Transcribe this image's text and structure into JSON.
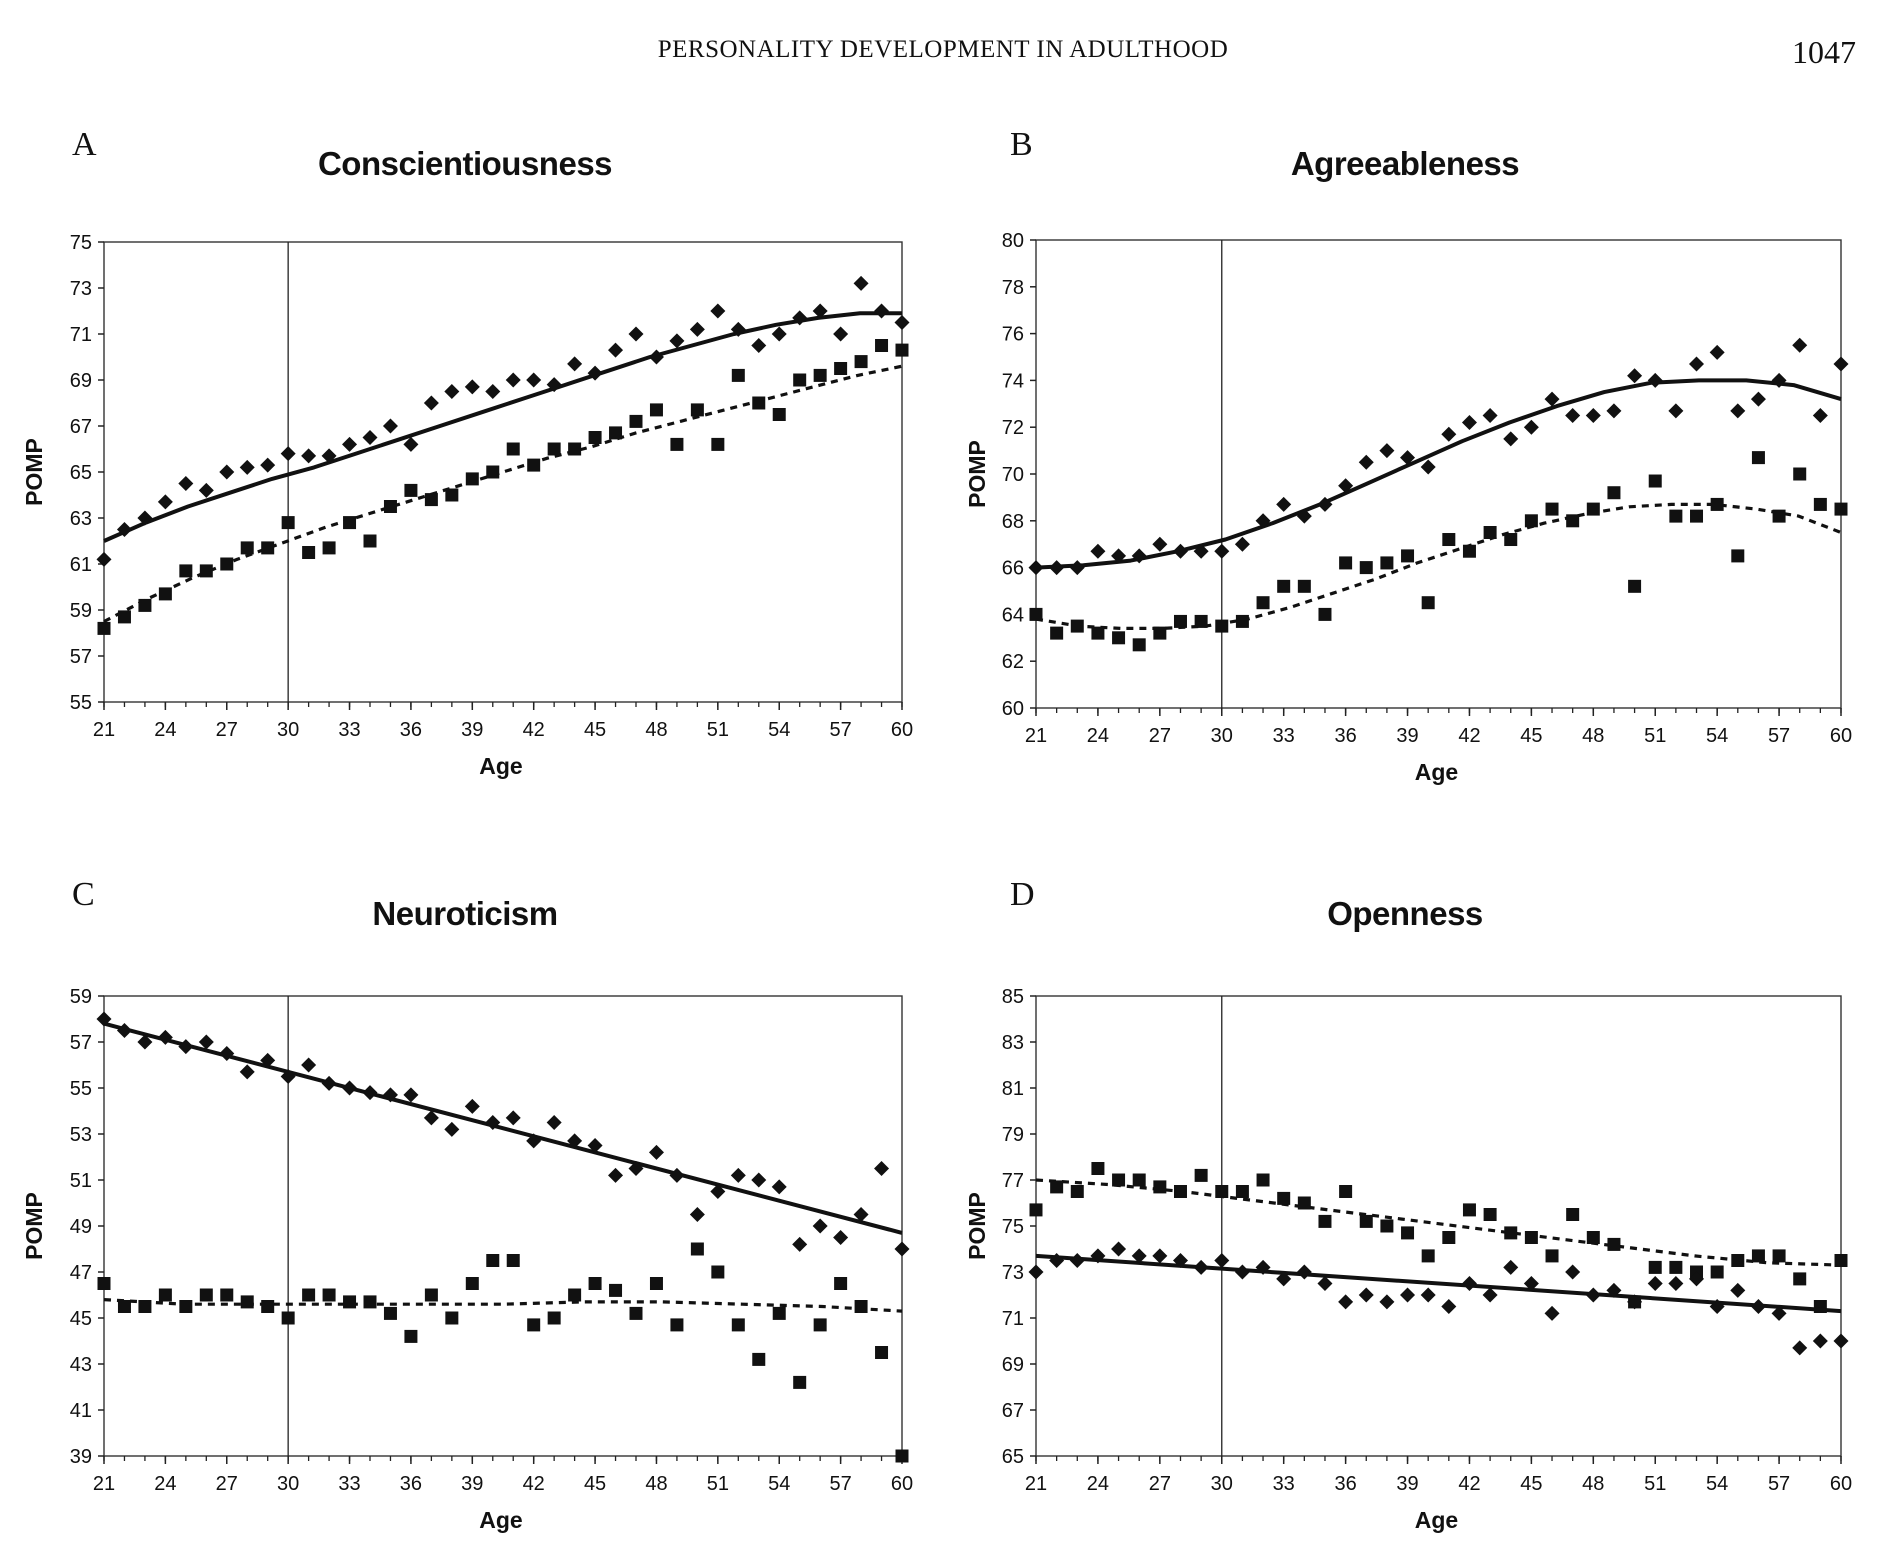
{
  "header": {
    "running_head": "PERSONALITY DEVELOPMENT IN ADULTHOOD",
    "page_number": "1047"
  },
  "chart_data": [
    {
      "panel": "A",
      "title": "Conscientiousness",
      "type": "scatter",
      "xlabel": "Age",
      "ylabel": "POMP",
      "xlim": [
        21,
        60
      ],
      "ylim": [
        55,
        75
      ],
      "xticks": [
        "21",
        "24",
        "27",
        "30",
        "33",
        "36",
        "39",
        "42",
        "45",
        "48",
        "51",
        "54",
        "57",
        "60"
      ],
      "yticks": [
        "55",
        "57",
        "59",
        "61",
        "63",
        "65",
        "67",
        "69",
        "71",
        "73",
        "75"
      ],
      "reference_line_x": 30,
      "series": [
        {
          "marker": "diamond",
          "fit": "solid",
          "x": [
            21,
            22,
            23,
            24,
            25,
            26,
            27,
            28,
            29,
            30,
            31,
            32,
            33,
            34,
            35,
            36,
            37,
            38,
            39,
            40,
            41,
            42,
            43,
            44,
            45,
            46,
            47,
            48,
            49,
            50,
            51,
            52,
            53,
            54,
            55,
            56,
            57,
            58,
            59,
            60
          ],
          "y": [
            61.2,
            62.5,
            63,
            63.7,
            64.5,
            64.2,
            65,
            65.2,
            65.3,
            65.8,
            65.7,
            65.7,
            66.2,
            66.5,
            67,
            66.2,
            68,
            68.5,
            68.7,
            68.5,
            69,
            69,
            68.8,
            69.7,
            69.3,
            70.3,
            71,
            70,
            70.7,
            71.2,
            72,
            71.2,
            70.5,
            71,
            71.7,
            72,
            71,
            73.2,
            72,
            71.5
          ],
          "fit_y": [
            62,
            62.8,
            63.5,
            64.1,
            64.7,
            65.2,
            65.8,
            66.4,
            67,
            67.6,
            68.2,
            68.8,
            69.4,
            70,
            70.5,
            71,
            71.4,
            71.7,
            71.9,
            71.9
          ]
        },
        {
          "marker": "square",
          "fit": "dashed",
          "x": [
            21,
            22,
            23,
            24,
            25,
            26,
            27,
            28,
            29,
            30,
            31,
            32,
            33,
            34,
            35,
            36,
            37,
            38,
            39,
            40,
            41,
            42,
            43,
            44,
            45,
            46,
            47,
            48,
            49,
            50,
            51,
            52,
            53,
            54,
            55,
            56,
            57,
            58,
            59,
            60
          ],
          "y": [
            58.2,
            58.7,
            59.2,
            59.7,
            60.7,
            60.7,
            61,
            61.7,
            61.7,
            62.8,
            61.5,
            61.7,
            62.8,
            62,
            63.5,
            64.2,
            63.8,
            64,
            64.7,
            65,
            66,
            65.3,
            66,
            66,
            66.5,
            66.7,
            67.2,
            67.7,
            66.2,
            67.7,
            66.2,
            69.2,
            68,
            67.5,
            69,
            69.2,
            69.5,
            69.8,
            70.5,
            70.3
          ],
          "fit_y": [
            58.5,
            59.5,
            60.4,
            61.2,
            61.9,
            62.6,
            63.2,
            63.8,
            64.4,
            65,
            65.6,
            66.1,
            66.7,
            67.2,
            67.7,
            68.2,
            68.7,
            69.2,
            69.6
          ]
        }
      ]
    },
    {
      "panel": "B",
      "title": "Agreeableness",
      "type": "scatter",
      "xlabel": "Age",
      "ylabel": "POMP",
      "xlim": [
        21,
        60
      ],
      "ylim": [
        60,
        80
      ],
      "xticks": [
        "21",
        "24",
        "27",
        "30",
        "33",
        "36",
        "39",
        "42",
        "45",
        "48",
        "51",
        "54",
        "57",
        "60"
      ],
      "yticks": [
        "60",
        "62",
        "64",
        "66",
        "68",
        "70",
        "72",
        "74",
        "76",
        "78",
        "80"
      ],
      "reference_line_x": 30,
      "series": [
        {
          "marker": "diamond",
          "fit": "solid",
          "x": [
            21,
            22,
            23,
            24,
            25,
            26,
            27,
            28,
            29,
            30,
            31,
            32,
            33,
            34,
            35,
            36,
            37,
            38,
            39,
            40,
            41,
            42,
            43,
            44,
            45,
            46,
            47,
            48,
            49,
            50,
            51,
            52,
            53,
            54,
            55,
            56,
            57,
            58,
            59,
            60
          ],
          "y": [
            66,
            66,
            66,
            66.7,
            66.5,
            66.5,
            67,
            66.7,
            66.7,
            66.7,
            67,
            68,
            68.7,
            68.2,
            68.7,
            69.5,
            70.5,
            71,
            70.7,
            70.3,
            71.7,
            72.2,
            72.5,
            71.5,
            72,
            73.2,
            72.5,
            72.5,
            72.7,
            74.2,
            74,
            72.7,
            74.7,
            75.2,
            72.7,
            73.2,
            74,
            75.5,
            72.5,
            74.7
          ],
          "fit_y": [
            66,
            66.1,
            66.3,
            66.7,
            67.2,
            67.9,
            68.7,
            69.6,
            70.5,
            71.4,
            72.2,
            72.9,
            73.5,
            73.9,
            74,
            74,
            73.8,
            73.2
          ]
        },
        {
          "marker": "square",
          "fit": "dashed",
          "x": [
            21,
            22,
            23,
            24,
            25,
            26,
            27,
            28,
            29,
            30,
            31,
            32,
            33,
            34,
            35,
            36,
            37,
            38,
            39,
            40,
            41,
            42,
            43,
            44,
            45,
            46,
            47,
            48,
            49,
            50,
            51,
            52,
            53,
            54,
            55,
            56,
            57,
            58,
            59,
            60
          ],
          "y": [
            64,
            63.2,
            63.5,
            63.2,
            63,
            62.7,
            63.2,
            63.7,
            63.7,
            63.5,
            63.7,
            64.5,
            65.2,
            65.2,
            64,
            66.2,
            66,
            66.2,
            66.5,
            64.5,
            67.2,
            66.7,
            67.5,
            67.2,
            68,
            68.5,
            68,
            68.5,
            69.2,
            65.2,
            69.7,
            68.2,
            68.2,
            68.7,
            66.5,
            70.7,
            68.2,
            70,
            68.7,
            68.5
          ],
          "fit_y": [
            63.8,
            63.5,
            63.4,
            63.4,
            63.5,
            63.8,
            64.3,
            64.9,
            65.5,
            66.2,
            66.8,
            67.4,
            67.9,
            68.3,
            68.6,
            68.7,
            68.7,
            68.5,
            68.2,
            67.5
          ]
        }
      ]
    },
    {
      "panel": "C",
      "title": "Neuroticism",
      "type": "scatter",
      "xlabel": "Age",
      "ylabel": "POMP",
      "xlim": [
        21,
        60
      ],
      "ylim": [
        39,
        59
      ],
      "xticks": [
        "21",
        "24",
        "27",
        "30",
        "33",
        "36",
        "39",
        "42",
        "45",
        "48",
        "51",
        "54",
        "57",
        "60"
      ],
      "yticks": [
        "39",
        "41",
        "43",
        "45",
        "47",
        "49",
        "51",
        "53",
        "55",
        "57",
        "59"
      ],
      "reference_line_x": 30,
      "series": [
        {
          "marker": "diamond",
          "fit": "solid",
          "x": [
            21,
            22,
            23,
            24,
            25,
            26,
            27,
            28,
            29,
            30,
            31,
            32,
            33,
            34,
            35,
            36,
            37,
            38,
            39,
            40,
            41,
            42,
            43,
            44,
            45,
            46,
            47,
            48,
            49,
            50,
            51,
            52,
            53,
            54,
            55,
            56,
            57,
            58,
            59,
            60
          ],
          "y": [
            58,
            57.5,
            57,
            57.2,
            56.8,
            57,
            56.5,
            55.7,
            56.2,
            55.5,
            56,
            55.2,
            55,
            54.8,
            54.7,
            54.7,
            53.7,
            53.2,
            54.2,
            53.5,
            53.7,
            52.7,
            53.5,
            52.7,
            52.5,
            51.2,
            51.5,
            52.2,
            51.2,
            49.5,
            50.5,
            51.2,
            51,
            50.7,
            48.2,
            49,
            48.5,
            49.5,
            51.5,
            48
          ],
          "fit_y": [
            57.8,
            48.7
          ]
        },
        {
          "marker": "square",
          "fit": "dashed",
          "x": [
            21,
            22,
            23,
            24,
            25,
            26,
            27,
            28,
            29,
            30,
            31,
            32,
            33,
            34,
            35,
            36,
            37,
            38,
            39,
            40,
            41,
            42,
            43,
            44,
            45,
            46,
            47,
            48,
            49,
            50,
            51,
            52,
            53,
            54,
            55,
            56,
            57,
            58,
            59,
            60
          ],
          "y": [
            46.5,
            45.5,
            45.5,
            46,
            45.5,
            46,
            46,
            45.7,
            45.5,
            45,
            46,
            46,
            45.7,
            45.7,
            45.2,
            44.2,
            46,
            45,
            46.5,
            47.5,
            47.5,
            44.7,
            45,
            46,
            46.5,
            46.2,
            45.2,
            46.5,
            44.7,
            48,
            47,
            44.7,
            43.2,
            45.2,
            42.2,
            44.7,
            46.5,
            45.5,
            43.5,
            39
          ],
          "fit_y": [
            45.8,
            45.6,
            45.6,
            45.6,
            45.6,
            45.6,
            45.7,
            45.7,
            45.6,
            45.5,
            45.3
          ]
        }
      ]
    },
    {
      "panel": "D",
      "title": "Openness",
      "type": "scatter",
      "xlabel": "Age",
      "ylabel": "POMP",
      "xlim": [
        21,
        60
      ],
      "ylim": [
        65,
        85
      ],
      "xticks": [
        "21",
        "24",
        "27",
        "30",
        "33",
        "36",
        "39",
        "42",
        "45",
        "48",
        "51",
        "54",
        "57",
        "60"
      ],
      "yticks": [
        "65",
        "67",
        "69",
        "71",
        "73",
        "75",
        "77",
        "79",
        "81",
        "83",
        "85"
      ],
      "reference_line_x": 30,
      "series": [
        {
          "marker": "square",
          "fit": "dashed",
          "x": [
            21,
            22,
            23,
            24,
            25,
            26,
            27,
            28,
            29,
            30,
            31,
            32,
            33,
            34,
            35,
            36,
            37,
            38,
            39,
            40,
            41,
            42,
            43,
            44,
            45,
            46,
            47,
            48,
            49,
            50,
            51,
            52,
            53,
            54,
            55,
            56,
            57,
            58,
            59,
            60
          ],
          "y": [
            75.7,
            76.7,
            76.5,
            77.5,
            77,
            77,
            76.7,
            76.5,
            77.2,
            76.5,
            76.5,
            77,
            76.2,
            76,
            75.2,
            76.5,
            75.2,
            75,
            74.7,
            73.7,
            74.5,
            75.7,
            75.5,
            74.7,
            74.5,
            73.7,
            75.5,
            74.5,
            74.2,
            71.7,
            73.2,
            73.2,
            73,
            73,
            73.5,
            73.7,
            73.7,
            72.7,
            71.5,
            73.5
          ],
          "fit_y": [
            77,
            76.8,
            76.5,
            76.1,
            75.7,
            75.3,
            74.9,
            74.5,
            74.1,
            73.7,
            73.4,
            73.3
          ]
        },
        {
          "marker": "diamond",
          "fit": "solid",
          "x": [
            21,
            22,
            23,
            24,
            25,
            26,
            27,
            28,
            29,
            30,
            31,
            32,
            33,
            34,
            35,
            36,
            37,
            38,
            39,
            40,
            41,
            42,
            43,
            44,
            45,
            46,
            47,
            48,
            49,
            50,
            51,
            52,
            53,
            54,
            55,
            56,
            57,
            58,
            59,
            60
          ],
          "y": [
            73,
            73.5,
            73.5,
            73.7,
            74,
            73.7,
            73.7,
            73.5,
            73.2,
            73.5,
            73,
            73.2,
            72.7,
            73,
            72.5,
            71.7,
            72,
            71.7,
            72,
            72,
            71.5,
            72.5,
            72,
            73.2,
            72.5,
            71.2,
            73,
            72,
            72.2,
            71.7,
            72.5,
            72.5,
            72.7,
            71.5,
            72.2,
            71.5,
            71.2,
            69.7,
            70,
            70
          ],
          "fit_y": [
            73.7,
            71.3
          ]
        }
      ]
    }
  ]
}
